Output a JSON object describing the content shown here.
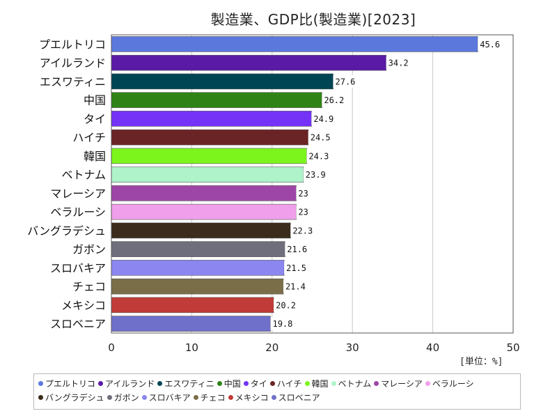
{
  "chart_data": {
    "type": "bar",
    "orientation": "horizontal",
    "title": "製造業、GDP比(製造業)[2023]",
    "unit_label": "[単位：%]",
    "xlim": [
      0,
      50
    ],
    "x_ticks": [
      "0",
      "10",
      "20",
      "30",
      "40",
      "50"
    ],
    "grid": true,
    "legend_position": "bottom",
    "categories": [
      "プエルトリコ",
      "アイルランド",
      "エスワティニ",
      "中国",
      "タイ",
      "ハイチ",
      "韓国",
      "ベトナム",
      "マレーシア",
      "ベラルーシ",
      "バングラデシュ",
      "ガボン",
      "スロバキア",
      "チェコ",
      "メキシコ",
      "スロベニア"
    ],
    "values": [
      45.6,
      34.2,
      27.6,
      26.2,
      24.9,
      24.5,
      24.3,
      23.9,
      23,
      23,
      22.3,
      21.6,
      21.5,
      21.4,
      20.2,
      19.8
    ],
    "value_labels": [
      "45.6",
      "34.2",
      "27.6",
      "26.2",
      "24.9",
      "24.5",
      "24.3",
      "23.9",
      "23",
      "23",
      "22.3",
      "21.6",
      "21.5",
      "21.4",
      "20.2",
      "19.8"
    ],
    "colors": [
      "#5b78dd",
      "#5a1aa6",
      "#004553",
      "#2f8316",
      "#7433f6",
      "#6b2426",
      "#7cf51c",
      "#aef3c9",
      "#9e46a8",
      "#f0a0ea",
      "#3c2c1b",
      "#6f6e7c",
      "#8b86f0",
      "#7a6e49",
      "#c13c39",
      "#6f70c9"
    ]
  }
}
